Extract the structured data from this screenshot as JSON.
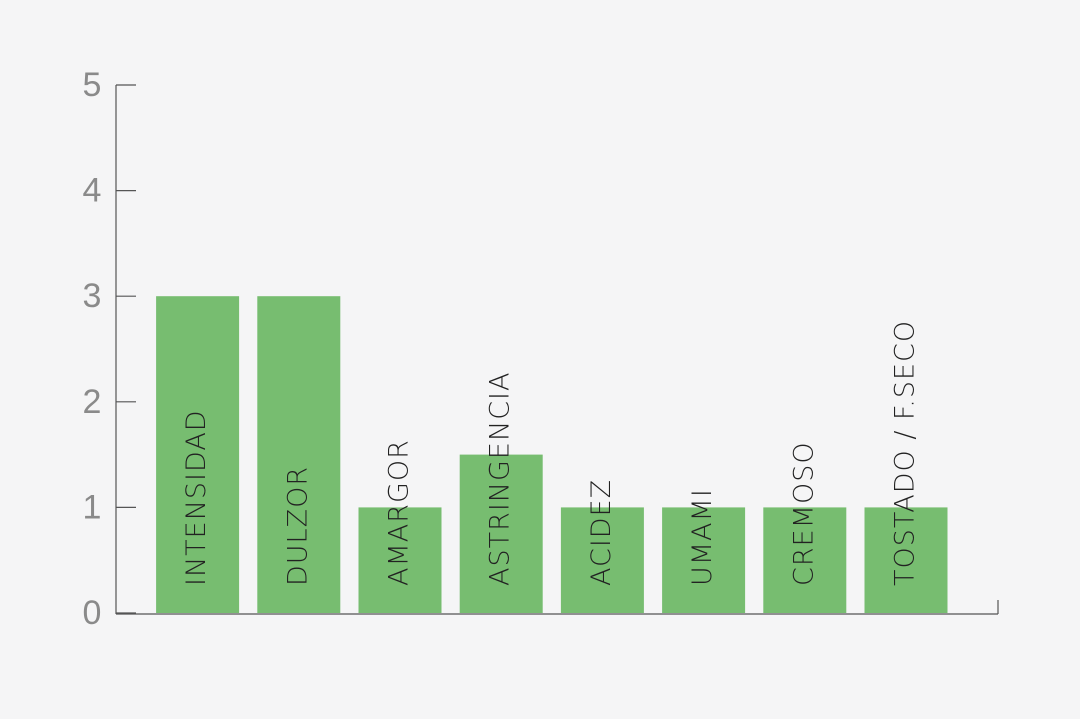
{
  "chart_data": {
    "type": "bar",
    "categories": [
      "INTENSIDAD",
      "DULZOR",
      "AMARGOR",
      "ASTRINGENCIA",
      "ACIDEZ",
      "UMAMI",
      "CREMOSO",
      "TOSTADO / F.SECO"
    ],
    "values": [
      3,
      3,
      1,
      1.5,
      1,
      1,
      1,
      1
    ],
    "color": "#77bd70",
    "ylim": [
      0,
      5
    ],
    "yticks": [
      0,
      1,
      2,
      3,
      4,
      5
    ]
  }
}
